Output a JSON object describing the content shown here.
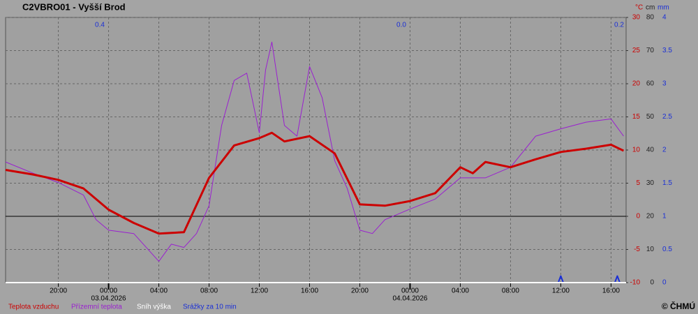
{
  "chart_data": {
    "type": "line",
    "title": "C2VBRO01 - Vyšší Brod",
    "copyright": "© ČHMÚ",
    "y_unit": "°C",
    "y2_unit": "cm",
    "y3_unit": "mm",
    "xlim": [
      -8.2,
      41.2
    ],
    "xticks": [
      {
        "value": -4,
        "label": "20:00"
      },
      {
        "value": 0,
        "label": "00:00"
      },
      {
        "value": 4,
        "label": "04:00"
      },
      {
        "value": 8,
        "label": "08:00"
      },
      {
        "value": 12,
        "label": "12:00"
      },
      {
        "value": 16,
        "label": "16:00"
      },
      {
        "value": 20,
        "label": "20:00"
      },
      {
        "value": 24,
        "label": "00:00"
      },
      {
        "value": 28,
        "label": "04:00"
      },
      {
        "value": 32,
        "label": "08:00"
      },
      {
        "value": 36,
        "label": "12:00"
      },
      {
        "value": 40,
        "label": "16:00"
      }
    ],
    "x_dates": [
      {
        "value": 0,
        "label": "03.04.2026"
      },
      {
        "value": 24,
        "label": "04.04.2026"
      }
    ],
    "ylim": [
      -10,
      30
    ],
    "yticks": [
      -10,
      -5,
      0,
      5,
      10,
      15,
      20,
      25,
      30
    ],
    "y2lim": [
      0,
      80
    ],
    "y2ticks": [
      0,
      10,
      20,
      30,
      40,
      50,
      60,
      70,
      80
    ],
    "y3lim": [
      0,
      4
    ],
    "y3ticks": [
      0,
      0.5,
      1,
      1.5,
      2,
      2.5,
      3,
      3.5,
      4
    ],
    "grid": true,
    "daily_totals": {
      "values": [
        0.4,
        0.0,
        0.2
      ],
      "value_labels": [
        "0.4",
        "0.0",
        "0.2"
      ],
      "color": "#1a2fd6"
    },
    "series": [
      {
        "name": "Teplota vzduchu",
        "color": "#cc0000",
        "axis": "y",
        "x": [
          -8.2,
          -6,
          -4,
          -2,
          0,
          2,
          4,
          6,
          8,
          10,
          12,
          13,
          14,
          16,
          18,
          20,
          22,
          24,
          26,
          28,
          29,
          30,
          32,
          34,
          36,
          38,
          40,
          41
        ],
        "values": [
          7.0,
          6.3,
          5.5,
          4.2,
          1.0,
          -1.0,
          -2.6,
          -2.4,
          5.8,
          10.7,
          11.8,
          12.6,
          11.3,
          12.1,
          9.5,
          1.8,
          1.6,
          2.3,
          3.5,
          7.4,
          6.5,
          8.2,
          7.4,
          8.6,
          9.7,
          10.2,
          10.8,
          9.9
        ]
      },
      {
        "name": "Přízemní teplota",
        "color": "#9a1fd0",
        "axis": "y",
        "x": [
          -8.2,
          -6,
          -4,
          -2,
          -1,
          0,
          2,
          4,
          5,
          6,
          7,
          8,
          9,
          10,
          11,
          12,
          12.5,
          13,
          14,
          15,
          16,
          17,
          18,
          19,
          20,
          21,
          22,
          24,
          26,
          28,
          30,
          32,
          34,
          36,
          38,
          40,
          41
        ],
        "values": [
          8.2,
          6.5,
          5.1,
          3.2,
          -0.5,
          -2.1,
          -2.6,
          -6.8,
          -4.2,
          -4.7,
          -2.6,
          1.6,
          13.7,
          20.5,
          21.6,
          12.6,
          22.1,
          26.3,
          13.7,
          12.1,
          22.6,
          17.9,
          8.4,
          4.2,
          -2.1,
          -2.6,
          -0.5,
          1.1,
          2.6,
          5.8,
          5.8,
          7.4,
          12.1,
          13.2,
          14.2,
          14.7,
          12.1
        ]
      },
      {
        "name": "Sníh výška",
        "color": "#ffffff",
        "axis": "y2",
        "x": [
          -8.2,
          41.2
        ],
        "values": [
          0,
          0
        ]
      },
      {
        "name": "Srážky za 10 min",
        "color": "#1a2fd6",
        "axis": "y3",
        "x": [
          -8.2,
          35.8,
          36,
          36.2,
          40.3,
          40.5,
          40.7,
          41.2
        ],
        "values": [
          0,
          0,
          0.1,
          0,
          0,
          0.1,
          0,
          0
        ]
      }
    ]
  }
}
